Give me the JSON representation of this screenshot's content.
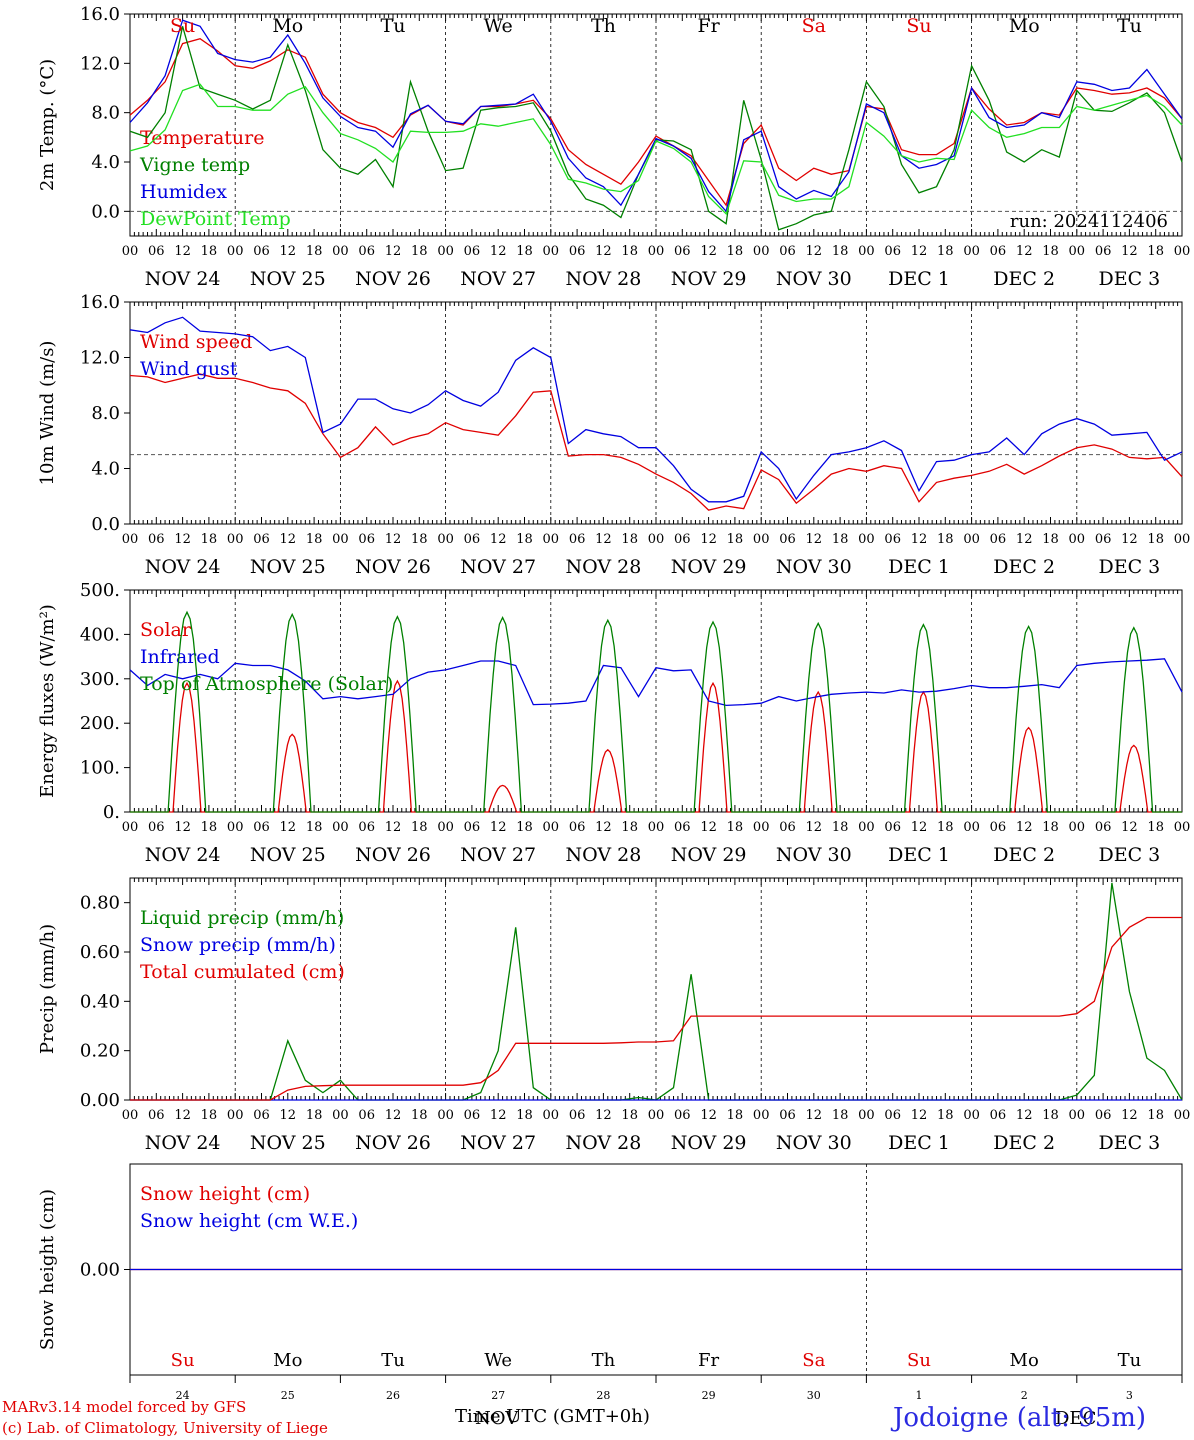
{
  "chart_data": [
    {
      "type": "line",
      "ylabel": "2m Temp. (°C)",
      "ylim": [
        -2,
        16
      ],
      "yticks": [
        "0.0",
        "4.0",
        "8.0",
        "12.0",
        "16.0"
      ],
      "ref_line": 0,
      "day_labels": [
        {
          "label": "Su",
          "color": "#e00000"
        },
        {
          "label": "Mo",
          "color": "#000000"
        },
        {
          "label": "Tu",
          "color": "#000000"
        },
        {
          "label": "We",
          "color": "#000000"
        },
        {
          "label": "Th",
          "color": "#000000"
        },
        {
          "label": "Fr",
          "color": "#000000"
        },
        {
          "label": "Sa",
          "color": "#e00000"
        },
        {
          "label": "Su",
          "color": "#e00000"
        },
        {
          "label": "Mo",
          "color": "#000000"
        },
        {
          "label": "Tu",
          "color": "#000000"
        }
      ],
      "annotation": "run: 2024112406",
      "series": [
        {
          "name": "Temperature",
          "color": "#e00000",
          "values": [
            7.8,
            9,
            10.5,
            13.6,
            14,
            13,
            11.8,
            11.6,
            12.2,
            13.1,
            12.5,
            9.5,
            8,
            7.2,
            6.8,
            6,
            7.8,
            8.6,
            7.3,
            7,
            8.5,
            8.5,
            8.7,
            9,
            7.5,
            5,
            3.8,
            3,
            2.2,
            4,
            6.1,
            5.3,
            4.5,
            2.5,
            0.5,
            5.5,
            7,
            3.5,
            2.5,
            3.5,
            3,
            3.3,
            8.5,
            8.3,
            5,
            4.6,
            4.6,
            5.5,
            10,
            8.3,
            7,
            7.2,
            8,
            7.8,
            10,
            9.8,
            9.5,
            9.6,
            10,
            9.2,
            7.5
          ]
        },
        {
          "name": "Vigne temp",
          "color": "#008000",
          "values": [
            6.5,
            6,
            8,
            15,
            10,
            9.5,
            9,
            8.3,
            9,
            13.5,
            9.8,
            5,
            3.5,
            3,
            4.2,
            2,
            10.5,
            6.5,
            3.3,
            3.5,
            8.2,
            8.4,
            8.5,
            8.8,
            6.5,
            3,
            1,
            0.5,
            -0.5,
            3,
            5.8,
            5.7,
            5,
            0,
            -1,
            9,
            4.2,
            -1.5,
            -1,
            -0.3,
            0,
            5,
            10.5,
            8.5,
            3.8,
            1.5,
            2,
            5,
            11.8,
            9,
            4.8,
            4,
            5,
            4.4,
            9.8,
            8.2,
            8.1,
            8.8,
            9.6,
            8,
            4
          ]
        },
        {
          "name": "Humidex",
          "color": "#0000e0",
          "values": [
            7.2,
            8.8,
            11,
            15.5,
            15,
            12.8,
            12.3,
            12.1,
            12.5,
            14.3,
            12,
            9.2,
            7.7,
            6.8,
            6.5,
            5.2,
            7.9,
            8.6,
            7.3,
            7.1,
            8.5,
            8.6,
            8.7,
            9.5,
            7.3,
            4.3,
            2.7,
            2,
            0.5,
            3,
            5.9,
            5.3,
            4.3,
            1.6,
            0,
            5.8,
            6.5,
            2,
            1,
            1.7,
            1.2,
            3.2,
            8.7,
            8,
            4.5,
            3.5,
            3.8,
            4.5,
            10,
            7.6,
            6.8,
            7,
            8,
            7.6,
            10.5,
            10.3,
            9.8,
            10,
            11.5,
            9.5,
            7.5
          ]
        },
        {
          "name": "DewPoint Temp",
          "color": "#22e022",
          "values": [
            4.9,
            5.3,
            6.6,
            9.8,
            10.3,
            8.5,
            8.5,
            8.2,
            8.2,
            9.5,
            10.1,
            8,
            6.3,
            5.8,
            5.1,
            4,
            6.5,
            6.4,
            6.4,
            6.5,
            7.1,
            6.9,
            7.2,
            7.5,
            5.4,
            2.6,
            2.3,
            1.8,
            1.6,
            2.5,
            5.7,
            5.1,
            4,
            1.2,
            -0.2,
            4.1,
            4,
            1.3,
            0.8,
            1,
            1,
            2,
            7.2,
            6.1,
            4.5,
            4,
            4.3,
            4.2,
            8.2,
            6.8,
            6,
            6.3,
            6.8,
            6.8,
            8.5,
            8.2,
            8.6,
            9,
            9.4,
            8.5,
            7
          ]
        }
      ]
    },
    {
      "type": "line",
      "ylabel": "10m Wind (m/s)",
      "ylim": [
        0,
        16
      ],
      "yticks": [
        "0.0",
        "4.0",
        "8.0",
        "12.0",
        "16.0"
      ],
      "ref_line": 5,
      "series": [
        {
          "name": "Wind speed",
          "color": "#e00000",
          "values": [
            10.7,
            10.6,
            10.2,
            10.5,
            10.8,
            10.5,
            10.5,
            10.2,
            9.8,
            9.6,
            8.7,
            6.5,
            4.8,
            5.5,
            7,
            5.7,
            6.2,
            6.5,
            7.3,
            6.8,
            6.6,
            6.4,
            7.8,
            9.5,
            9.6,
            4.9,
            5,
            5,
            4.8,
            4.3,
            3.6,
            3,
            2.2,
            1,
            1.3,
            1.1,
            3.9,
            3.2,
            1.5,
            2.5,
            3.6,
            4,
            3.8,
            4.2,
            4,
            1.6,
            3,
            3.3,
            3.5,
            3.8,
            4.3,
            3.6,
            4.2,
            4.9,
            5.5,
            5.7,
            5.4,
            4.8,
            4.7,
            4.8,
            3.4
          ]
        },
        {
          "name": "Wind gust",
          "color": "#0000e0",
          "values": [
            14,
            13.8,
            14.5,
            14.9,
            13.9,
            13.8,
            13.7,
            13.5,
            12.5,
            12.8,
            12,
            6.6,
            7.2,
            9,
            9,
            8.3,
            8,
            8.6,
            9.6,
            8.9,
            8.5,
            9.5,
            11.8,
            12.7,
            12,
            5.8,
            6.8,
            6.5,
            6.3,
            5.5,
            5.5,
            4.2,
            2.5,
            1.6,
            1.6,
            2,
            5.2,
            4,
            1.8,
            3.5,
            5,
            5.2,
            5.5,
            6,
            5.3,
            2.4,
            4.5,
            4.6,
            5,
            5.2,
            6.2,
            5,
            6.5,
            7.2,
            7.6,
            7.2,
            6.4,
            6.5,
            6.6,
            4.6,
            5.2
          ]
        }
      ]
    },
    {
      "type": "line",
      "ylabel": "Energy fluxes (W/m²)",
      "ylim": [
        0,
        500
      ],
      "yticks": [
        "0.",
        "100.",
        "200.",
        "300.",
        "400.",
        "500."
      ],
      "series": [
        {
          "name": "Solar",
          "color": "#e00000",
          "peaks": [
            290,
            175,
            295,
            60,
            140,
            290,
            270,
            270,
            190,
            150
          ]
        },
        {
          "name": "Infrared",
          "color": "#0000e0",
          "values": [
            320,
            285,
            310,
            300,
            310,
            300,
            335,
            330,
            330,
            320,
            295,
            255,
            260,
            255,
            260,
            265,
            300,
            315,
            320,
            330,
            340,
            340,
            330,
            242,
            243,
            245,
            250,
            330,
            325,
            260,
            325,
            318,
            320,
            250,
            240,
            242,
            245,
            260,
            250,
            258,
            265,
            268,
            270,
            268,
            275,
            270,
            272,
            278,
            285,
            280,
            280,
            283,
            287,
            280,
            330,
            335,
            338,
            340,
            342,
            345,
            270
          ]
        },
        {
          "name": "Top of Atmosphere (Solar)",
          "color": "#008000",
          "peaks": [
            450,
            445,
            440,
            438,
            432,
            428,
            425,
            422,
            418,
            415
          ]
        }
      ]
    },
    {
      "type": "line",
      "ylabel": "Precip (mm/h)",
      "ylim": [
        0,
        0.9
      ],
      "yticks": [
        "0.00",
        "0.20",
        "0.40",
        "0.60",
        "0.80"
      ],
      "series": [
        {
          "name": "Liquid precip (mm/h)",
          "color": "#008000",
          "values": [
            0,
            0,
            0,
            0,
            0,
            0,
            0,
            0,
            0,
            0.24,
            0.08,
            0.03,
            0.08,
            0,
            0,
            0,
            0,
            0,
            0,
            0,
            0.03,
            0.2,
            0.7,
            0.05,
            0,
            0,
            0,
            0,
            0,
            0.01,
            0,
            0.05,
            0.51,
            0,
            0,
            0,
            0,
            0,
            0,
            0,
            0,
            0,
            0,
            0,
            0,
            0,
            0,
            0,
            0,
            0,
            0,
            0,
            0,
            0,
            0.02,
            0.1,
            0.88,
            0.44,
            0.17,
            0.12,
            0
          ]
        },
        {
          "name": "Snow precip (mm/h)",
          "color": "#0000e0",
          "values": [
            0,
            0,
            0,
            0,
            0,
            0,
            0,
            0,
            0,
            0,
            0,
            0,
            0,
            0,
            0,
            0,
            0,
            0,
            0,
            0,
            0,
            0,
            0,
            0,
            0,
            0,
            0,
            0,
            0,
            0,
            0,
            0,
            0,
            0,
            0,
            0,
            0,
            0,
            0,
            0,
            0,
            0,
            0,
            0,
            0,
            0,
            0,
            0,
            0,
            0,
            0,
            0,
            0,
            0,
            0,
            0,
            0,
            0,
            0,
            0,
            0
          ]
        },
        {
          "name": "Total cumulated (cm)",
          "color": "#e00000",
          "values": [
            0,
            0,
            0,
            0,
            0,
            0,
            0,
            0,
            0,
            0.04,
            0.055,
            0.058,
            0.06,
            0.06,
            0.06,
            0.06,
            0.06,
            0.06,
            0.06,
            0.06,
            0.07,
            0.12,
            0.23,
            0.23,
            0.23,
            0.23,
            0.23,
            0.23,
            0.232,
            0.235,
            0.235,
            0.24,
            0.34,
            0.34,
            0.34,
            0.34,
            0.34,
            0.34,
            0.34,
            0.34,
            0.34,
            0.34,
            0.34,
            0.34,
            0.34,
            0.34,
            0.34,
            0.34,
            0.34,
            0.34,
            0.34,
            0.34,
            0.34,
            0.34,
            0.35,
            0.4,
            0.62,
            0.7,
            0.74,
            0.74,
            0.74
          ]
        }
      ]
    },
    {
      "type": "line",
      "ylabel": "Snow height (cm)",
      "ylim": [
        -1,
        1
      ],
      "yticks": [
        "0.00"
      ],
      "bottom_day_labels": [
        {
          "label": "Su",
          "color": "#e00000"
        },
        {
          "label": "Mo",
          "color": "#000000"
        },
        {
          "label": "Tu",
          "color": "#000000"
        },
        {
          "label": "We",
          "color": "#000000"
        },
        {
          "label": "Th",
          "color": "#000000"
        },
        {
          "label": "Fr",
          "color": "#000000"
        },
        {
          "label": "Sa",
          "color": "#e00000"
        },
        {
          "label": "Su",
          "color": "#e00000"
        },
        {
          "label": "Mo",
          "color": "#000000"
        },
        {
          "label": "Tu",
          "color": "#000000"
        }
      ],
      "day_numbers": [
        "24",
        "25",
        "26",
        "27",
        "28",
        "29",
        "30",
        "1",
        "2",
        "3"
      ],
      "series": [
        {
          "name": "Snow height (cm)",
          "color": "#e00000",
          "values": [
            0,
            0
          ]
        },
        {
          "name": "Snow height (cm W.E.)",
          "color": "#0000e0",
          "values": [
            0,
            0
          ]
        }
      ]
    }
  ],
  "x_axis": {
    "hour_ticks": [
      "00",
      "06",
      "12",
      "18"
    ],
    "final_hour": "00",
    "dates": [
      "NOV 24",
      "NOV 25",
      "NOV 26",
      "NOV 27",
      "NOV 28",
      "NOV 29",
      "NOV 30",
      "DEC  1",
      "DEC  2",
      "DEC  3"
    ]
  },
  "footer": {
    "model": "MARv3.14 model forced by GFS",
    "lab": "(c) Lab. of Climatology, University of Liege",
    "time_label": "Time UTC (GMT+0h)",
    "time_overlay": "NOV",
    "location": "Jodoigne (alt: 95m)",
    "location_overlay": "DEC"
  }
}
